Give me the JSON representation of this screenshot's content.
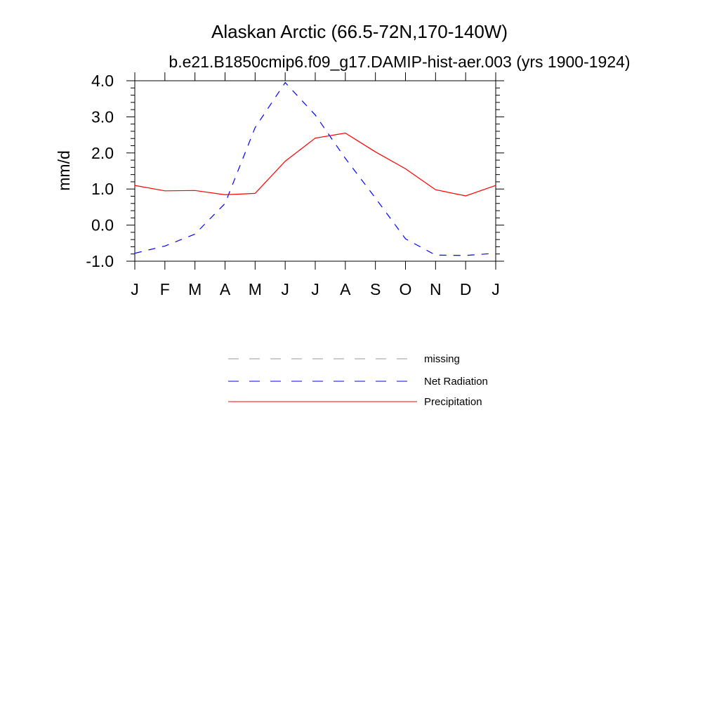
{
  "chart_data": {
    "type": "line",
    "title": "Alaskan Arctic (66.5-72N,170-140W)",
    "subtitle": "b.e21.B1850cmip6.f09_g17.DAMIP-hist-aer.003 (yrs 1900-1924)",
    "xlabel": "",
    "ylabel": "mm/d",
    "ylim": [
      -1.0,
      4.0
    ],
    "yticks": [
      "4.0",
      "3.0",
      "2.0",
      "1.0",
      "0.0",
      "-1.0"
    ],
    "categories": [
      "J",
      "F",
      "M",
      "A",
      "M",
      "J",
      "J",
      "A",
      "S",
      "O",
      "N",
      "D",
      "J"
    ],
    "series": [
      {
        "name": "Net Radiation",
        "color": "#0000ff",
        "dash": "dashed",
        "values": [
          -0.78,
          -0.58,
          -0.25,
          0.6,
          2.7,
          3.95,
          3.05,
          1.85,
          0.75,
          -0.38,
          -0.83,
          -0.84,
          -0.78
        ]
      },
      {
        "name": "Precipitation",
        "color": "#ff0000",
        "dash": "solid",
        "values": [
          1.1,
          0.95,
          0.96,
          0.84,
          0.88,
          1.77,
          2.41,
          2.55,
          2.03,
          1.56,
          0.98,
          0.81,
          1.1
        ]
      }
    ],
    "legend": [
      {
        "label": "missing",
        "color": "#999999",
        "dash": "dashed"
      },
      {
        "label": "Net Radiation",
        "color": "#0000ff",
        "dash": "dashed"
      },
      {
        "label": "Precipitation",
        "color": "#ff0000",
        "dash": "solid"
      }
    ],
    "grid": false,
    "legend_position": "below"
  }
}
